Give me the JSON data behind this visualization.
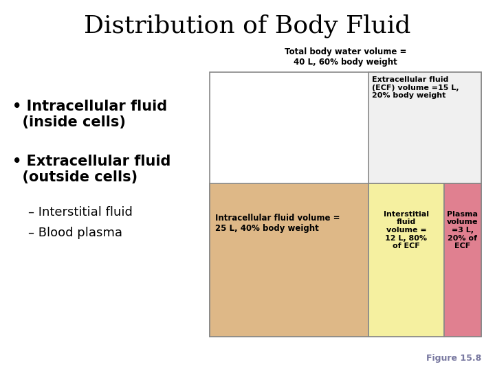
{
  "title": "Distribution of Body Fluid",
  "background_color": "#ffffff",
  "title_fontsize": 26,
  "title_font": "DejaVu Serif",
  "figure_label": "Figure 15.8",
  "figure_label_color": "#7878a0",
  "diagram": {
    "outer_label": "Total body water volume =\n40 L, 60% body weight",
    "outer_box_color": "#ffffff",
    "border_color": "#888888",
    "ecf_label": "Extracellular fluid\n(ECF) volume =15 L,\n20% body weight",
    "ecf_bg": "#f0f0f0",
    "cell1_label": "Intracellular fluid volume =\n25 L, 40% body weight",
    "cell1_color": "#deb887",
    "cell2_label": "Interstitial\nfluid\nvolume =\n12 L, 80%\nof ECF",
    "cell2_color": "#f5f0a0",
    "cell3_label": "Plasma\nvolume\n=3 L,\n20% of\nECF",
    "cell3_color": "#e08090"
  }
}
